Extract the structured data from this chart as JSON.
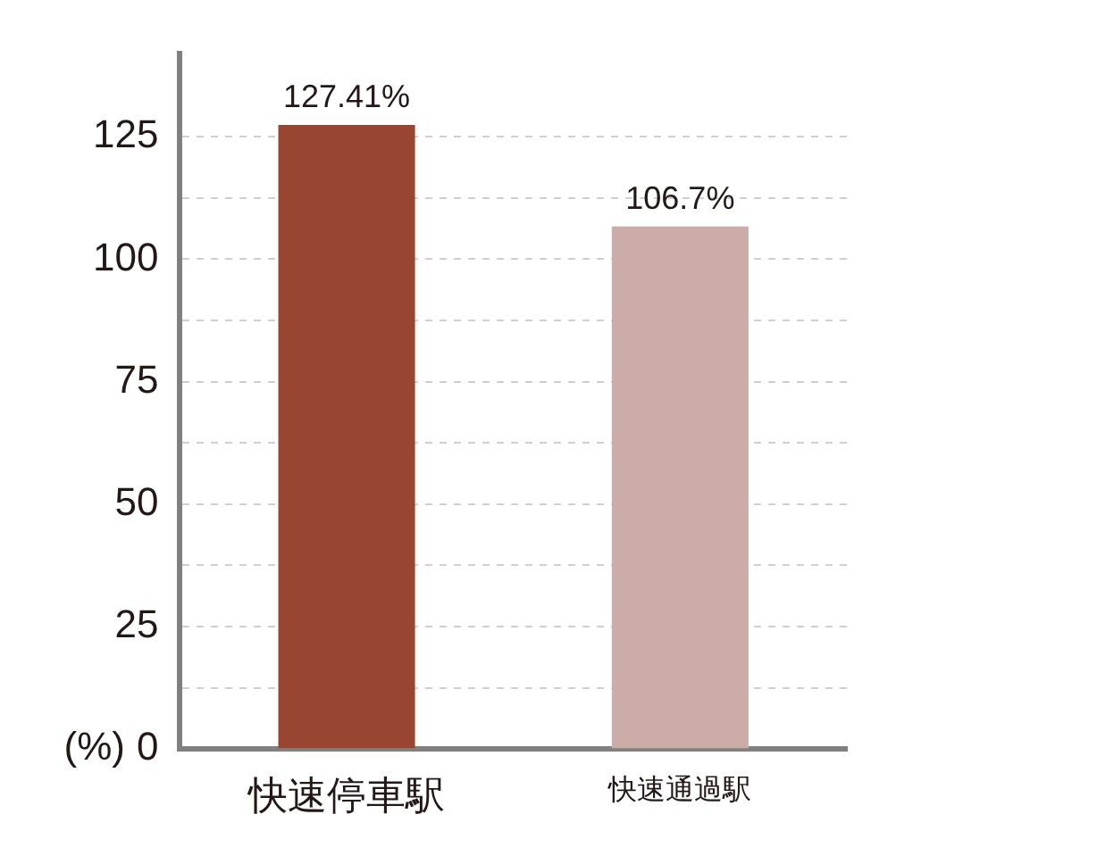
{
  "chart_data": {
    "type": "bar",
    "ylabel": "(%)",
    "categories": [
      "快速停車駅",
      "快速通過駅"
    ],
    "values": [
      127.41,
      106.7
    ],
    "colors": [
      "#984532",
      "#cbaca7"
    ],
    "value_labels": [
      "127.41%",
      "106.7%"
    ],
    "ylim": [
      0,
      142
    ],
    "yticks": [
      0,
      {
        "value": 12.5,
        "label": null
      },
      25,
      {
        "value": 37.5,
        "label": null
      },
      50,
      {
        "value": 62.5,
        "label": null
      },
      75,
      {
        "value": 87.5,
        "label": null
      },
      100,
      {
        "value": 112.5,
        "label": null
      },
      125
    ],
    "grid": "y",
    "legend": false
  }
}
